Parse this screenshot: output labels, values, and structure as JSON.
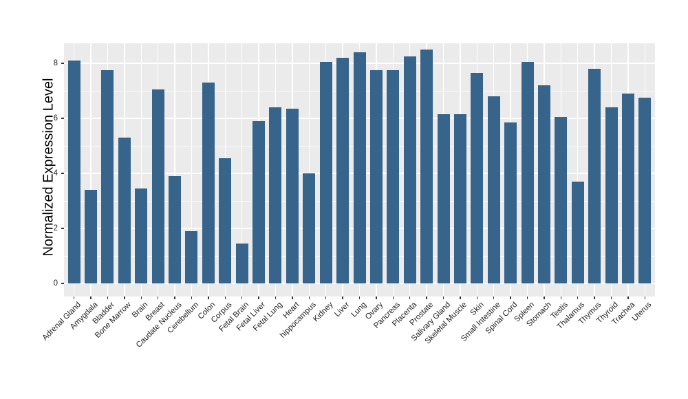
{
  "figure": {
    "background": "#FFFFFF"
  },
  "chart_data": {
    "type": "bar",
    "title": "",
    "xlabel": "",
    "ylabel": "Normalized Expression Level",
    "categories": [
      "Adrenal Gland",
      "Amygdala",
      "Bladder",
      "Bone Marrow",
      "Brain",
      "Breast",
      "Caudate Nucleus",
      "Cerebellum",
      "Colon",
      "Corpus",
      "Fetal Brain",
      "Fetal Liver",
      "Fetal Lung",
      "Heart",
      "hippocampus",
      "Kidney",
      "Liver",
      "Lung",
      "Ovary",
      "Pancreas",
      "Placenta",
      "Prostate",
      "Salivary Gland",
      "Skeletal Muscle",
      "Skin",
      "Small Intestine",
      "Spinal Cord",
      "Spleen",
      "Stomach",
      "Testis",
      "Thalamus",
      "Thymus",
      "Thyroid",
      "Trachea",
      "Uterus"
    ],
    "values": [
      8.1,
      3.4,
      7.75,
      5.3,
      3.45,
      7.05,
      3.9,
      1.9,
      7.3,
      4.55,
      1.45,
      5.9,
      6.4,
      6.35,
      4.0,
      8.05,
      8.2,
      8.4,
      7.75,
      7.75,
      8.25,
      8.5,
      6.15,
      6.15,
      7.65,
      6.8,
      5.85,
      8.05,
      7.2,
      6.05,
      3.7,
      7.8,
      6.4,
      6.9,
      6.75
    ],
    "ylim": [
      0,
      8.7
    ],
    "y_major_ticks": [
      0,
      2,
      4,
      6,
      8
    ],
    "y_minor_gridlines": [
      1,
      3,
      5,
      7
    ],
    "grid": "on",
    "legend": "none",
    "x_tick_rotation_deg": 45,
    "bar_color": "#36648B",
    "panel_background": "#EBEBEB",
    "gridline_color": "#FFFFFF",
    "tick_color": "#333333",
    "axis_text_color": "#1F1F1F"
  }
}
